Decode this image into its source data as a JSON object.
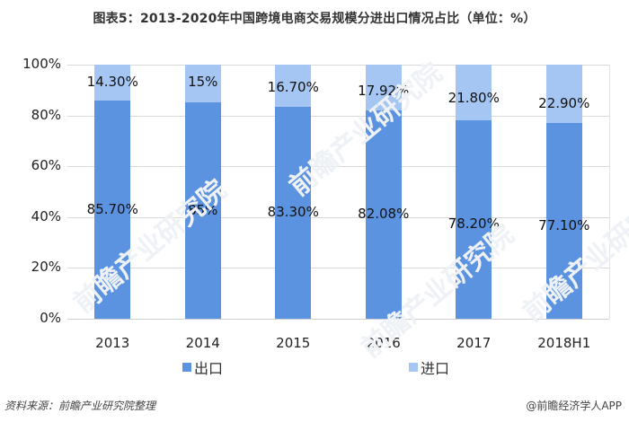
{
  "title": "图表5：2013-2020年中国跨境电商交易规模分进出口情况占比（单位：%）",
  "colors": {
    "export": "#5b93e0",
    "import": "#a5c6f2",
    "grid": "#d9d9d9"
  },
  "y_ticks": [
    "100%",
    "80%",
    "60%",
    "40%",
    "20%",
    "0%"
  ],
  "legend": {
    "export": "出口",
    "import": "进口"
  },
  "footer": {
    "source": "资料来源：前瞻产业研究院整理",
    "credit": "@前瞻经济学人APP"
  },
  "watermark": "前瞻产业研究院",
  "labels": {
    "export": [
      "85.70%",
      "85%",
      "83.30%",
      "82.08%",
      "78.20%",
      "77.10%"
    ],
    "import": [
      "14.30%",
      "15%",
      "16.70%",
      "17.92%",
      "21.80%",
      "22.90%"
    ]
  },
  "categories": [
    "2013",
    "2014",
    "2015",
    "2016",
    "2017",
    "2018H1"
  ],
  "chart_data": {
    "type": "bar",
    "stacked": true,
    "title": "图表5：2013-2020年中国跨境电商交易规模分进出口情况占比（单位：%）",
    "categories": [
      "2013",
      "2014",
      "2015",
      "2016",
      "2017",
      "2018H1"
    ],
    "series": [
      {
        "name": "出口",
        "values": [
          85.7,
          85,
          83.3,
          82.08,
          78.2,
          77.1
        ],
        "color": "#5b93e0"
      },
      {
        "name": "进口",
        "values": [
          14.3,
          15,
          16.7,
          17.92,
          21.8,
          22.9
        ],
        "color": "#a5c6f2"
      }
    ],
    "xlabel": "",
    "ylabel": "",
    "ylim": [
      0,
      100
    ],
    "y_ticks": [
      "0%",
      "20%",
      "40%",
      "60%",
      "80%",
      "100%"
    ],
    "grid": true,
    "legend_position": "bottom",
    "source": "资料来源：前瞻产业研究院整理"
  }
}
